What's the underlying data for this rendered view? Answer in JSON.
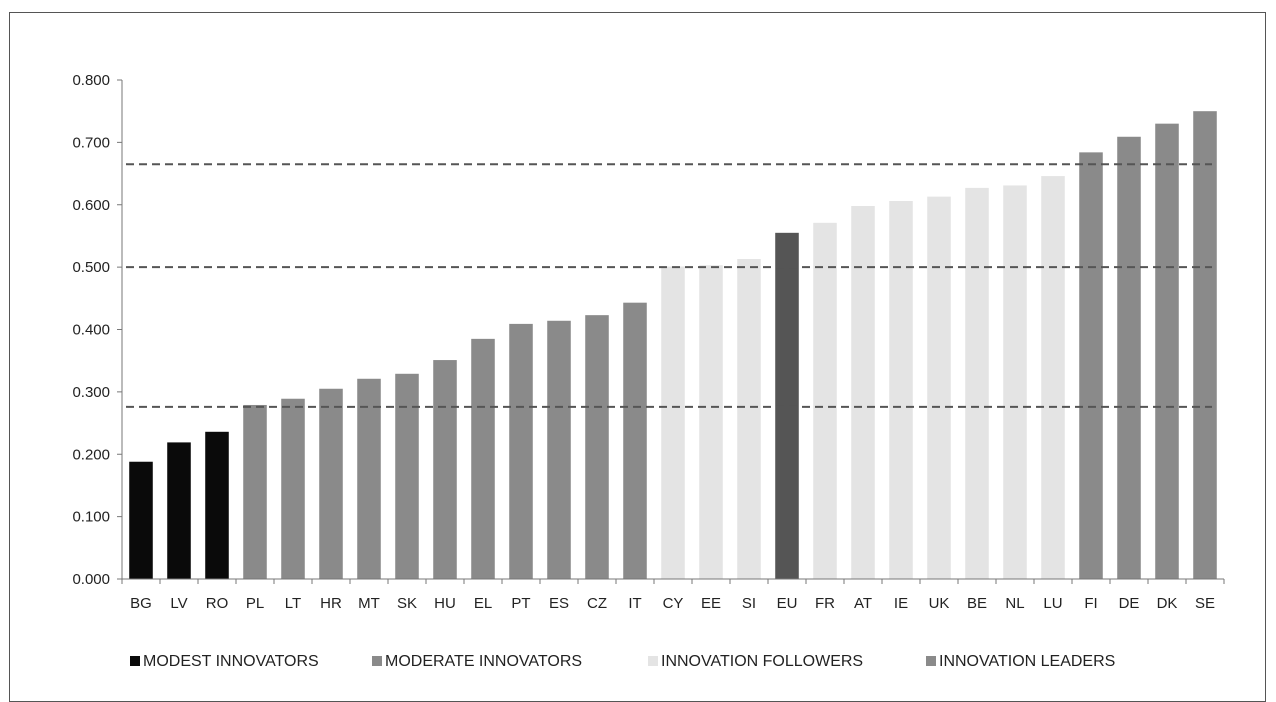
{
  "chart_data": {
    "type": "bar",
    "categories": [
      "BG",
      "LV",
      "RO",
      "PL",
      "LT",
      "HR",
      "MT",
      "SK",
      "HU",
      "EL",
      "PT",
      "ES",
      "CZ",
      "IT",
      "CY",
      "EE",
      "SI",
      "EU",
      "FR",
      "AT",
      "IE",
      "UK",
      "BE",
      "NL",
      "LU",
      "FI",
      "DE",
      "DK",
      "SE"
    ],
    "values": [
      0.188,
      0.219,
      0.236,
      0.279,
      0.289,
      0.305,
      0.321,
      0.329,
      0.351,
      0.385,
      0.409,
      0.414,
      0.423,
      0.443,
      0.501,
      0.503,
      0.513,
      0.555,
      0.571,
      0.598,
      0.606,
      0.613,
      0.627,
      0.631,
      0.646,
      0.684,
      0.709,
      0.73,
      0.75
    ],
    "groups": [
      "modest",
      "modest",
      "modest",
      "moderate",
      "moderate",
      "moderate",
      "moderate",
      "moderate",
      "moderate",
      "moderate",
      "moderate",
      "moderate",
      "moderate",
      "moderate",
      "follower",
      "follower",
      "follower",
      "eu",
      "follower",
      "follower",
      "follower",
      "follower",
      "follower",
      "follower",
      "follower",
      "leader",
      "leader",
      "leader",
      "leader"
    ],
    "group_colors": {
      "modest": "#0a0a0a",
      "moderate": "#8a8a8a",
      "follower": "#e4e4e4",
      "leader": "#8a8a8a",
      "eu": "#555555"
    },
    "thresholds": [
      0.276,
      0.5,
      0.665
    ],
    "ylim": [
      0,
      0.8
    ],
    "yticks": [
      "0.000",
      "0.100",
      "0.200",
      "0.300",
      "0.400",
      "0.500",
      "0.600",
      "0.700",
      "0.800"
    ],
    "grid": false,
    "legend_position": "bottom",
    "legend": [
      {
        "label": "MODEST INNOVATORS",
        "color": "#0a0a0a"
      },
      {
        "label": "MODERATE INNOVATORS",
        "color": "#8a8a8a"
      },
      {
        "label": "INNOVATION FOLLOWERS",
        "color": "#e4e4e4"
      },
      {
        "label": "INNOVATION LEADERS",
        "color": "#8a8a8a"
      }
    ]
  }
}
